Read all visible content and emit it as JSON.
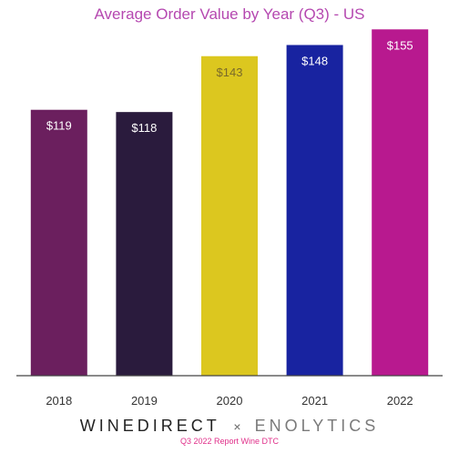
{
  "chart_data": {
    "type": "bar",
    "title": "Average Order Value by Year (Q3) - US",
    "categories": [
      "2018",
      "2019",
      "2020",
      "2021",
      "2022"
    ],
    "values": [
      119,
      118,
      143,
      148,
      155
    ],
    "value_labels": [
      "$119",
      "$118",
      "$143",
      "$148",
      "$155"
    ],
    "bar_colors": [
      "#6b1f5e",
      "#2a1b3d",
      "#dcc71f",
      "#1823a0",
      "#b8198f"
    ],
    "ylim": [
      0,
      160
    ],
    "grid": false,
    "legend": "none",
    "xlabel": "",
    "ylabel": ""
  },
  "footer": {
    "brand_a": "WINEDIRECT",
    "separator": "×",
    "brand_b": "ENOLYTICS",
    "subtitle": "Q3 2022 Report Wine DTC"
  }
}
